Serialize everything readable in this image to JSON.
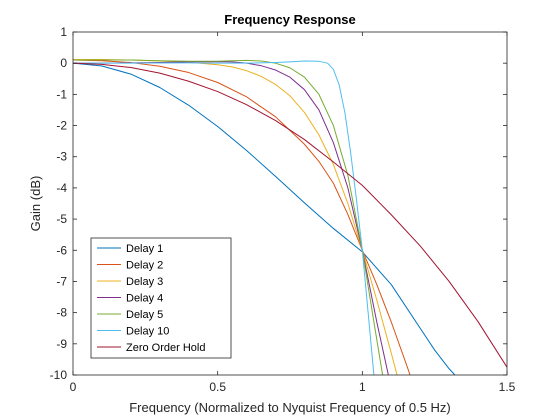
{
  "chart_data": {
    "type": "line",
    "title": "Frequency Response",
    "xlabel": "Frequency (Normalized to Nyquist Frequency of 0.5 Hz)",
    "ylabel": "Gain (dB)",
    "xlim": [
      0,
      1.5
    ],
    "ylim": [
      -10,
      1
    ],
    "xticks": [
      0,
      0.5,
      1,
      1.5
    ],
    "xtick_labels": [
      "0",
      "0.5",
      "1",
      "1.5"
    ],
    "yticks": [
      1,
      0,
      -1,
      -2,
      -3,
      -4,
      -5,
      -6,
      -7,
      -8,
      -9,
      -10
    ],
    "ytick_labels": [
      "1",
      "0",
      "-1",
      "-2",
      "-3",
      "-4",
      "-5",
      "-6",
      "-7",
      "-8",
      "-9",
      "-10"
    ],
    "grid": false,
    "legend_position": "bottom-left",
    "series": [
      {
        "name": "Delay 1",
        "color": "#0072BD",
        "x": [
          0,
          0.1,
          0.2,
          0.3,
          0.4,
          0.5,
          0.6,
          0.7,
          0.8,
          0.9,
          1.0,
          1.1,
          1.2,
          1.25,
          1.3,
          1.32
        ],
        "y": [
          0,
          -0.09,
          -0.35,
          -0.78,
          -1.35,
          -2.03,
          -2.8,
          -3.63,
          -4.48,
          -5.3,
          -6.05,
          -7.1,
          -8.5,
          -9.2,
          -9.8,
          -10
        ]
      },
      {
        "name": "Delay 2",
        "color": "#D95319",
        "x": [
          0,
          0.1,
          0.2,
          0.3,
          0.4,
          0.5,
          0.6,
          0.7,
          0.8,
          0.85,
          0.9,
          0.95,
          1.0,
          1.05,
          1.1,
          1.15,
          1.165
        ],
        "y": [
          0.1,
          0.08,
          0.02,
          -0.1,
          -0.3,
          -0.62,
          -1.08,
          -1.72,
          -2.6,
          -3.15,
          -3.85,
          -4.85,
          -6.0,
          -7.1,
          -8.3,
          -9.6,
          -10
        ]
      },
      {
        "name": "Delay 3",
        "color": "#EDB120",
        "x": [
          0,
          0.1,
          0.2,
          0.3,
          0.4,
          0.5,
          0.55,
          0.6,
          0.65,
          0.7,
          0.75,
          0.8,
          0.85,
          0.9,
          0.95,
          1.0,
          1.05,
          1.1,
          1.12
        ],
        "y": [
          0.12,
          0.12,
          0.1,
          0.07,
          0.03,
          -0.05,
          -0.12,
          -0.24,
          -0.42,
          -0.68,
          -1.05,
          -1.58,
          -2.3,
          -3.25,
          -4.5,
          -6.0,
          -7.6,
          -9.3,
          -10
        ]
      },
      {
        "name": "Delay 4",
        "color": "#7E2F8E",
        "x": [
          0,
          0.1,
          0.2,
          0.3,
          0.4,
          0.5,
          0.55,
          0.6,
          0.65,
          0.7,
          0.75,
          0.8,
          0.85,
          0.9,
          0.95,
          1.0,
          1.05,
          1.09
        ],
        "y": [
          0,
          0,
          0.01,
          0.02,
          0.04,
          0.05,
          0.04,
          0.0,
          -0.08,
          -0.22,
          -0.45,
          -0.85,
          -1.5,
          -2.55,
          -4.0,
          -6.0,
          -8.3,
          -10
        ]
      },
      {
        "name": "Delay 5",
        "color": "#77AC30",
        "x": [
          0,
          0.1,
          0.2,
          0.3,
          0.4,
          0.5,
          0.55,
          0.6,
          0.65,
          0.7,
          0.75,
          0.8,
          0.85,
          0.9,
          0.95,
          1.0,
          1.04,
          1.07
        ],
        "y": [
          0.1,
          0.1,
          0.1,
          0.08,
          0.06,
          0.06,
          0.08,
          0.09,
          0.07,
          0.0,
          -0.15,
          -0.45,
          -1.0,
          -2.0,
          -3.6,
          -6.0,
          -8.3,
          -10
        ]
      },
      {
        "name": "Delay 10",
        "color": "#4DBEEE",
        "x": [
          0,
          0.2,
          0.4,
          0.5,
          0.6,
          0.7,
          0.75,
          0.8,
          0.85,
          0.88,
          0.9,
          0.92,
          0.94,
          0.96,
          0.98,
          1.0,
          1.02,
          1.04
        ],
        "y": [
          0,
          0,
          0.01,
          0.0,
          0.0,
          0.02,
          0.04,
          0.07,
          0.06,
          0.0,
          -0.2,
          -0.7,
          -1.6,
          -2.9,
          -4.4,
          -6.0,
          -8.0,
          -10
        ]
      },
      {
        "name": "Zero Order Hold",
        "color": "#A2142F",
        "x": [
          0,
          0.1,
          0.2,
          0.3,
          0.4,
          0.5,
          0.6,
          0.7,
          0.8,
          0.9,
          1.0,
          1.1,
          1.2,
          1.3,
          1.4,
          1.5
        ],
        "y": [
          0,
          -0.04,
          -0.14,
          -0.32,
          -0.58,
          -0.91,
          -1.33,
          -1.84,
          -2.45,
          -3.17,
          -3.92,
          -4.86,
          -5.86,
          -7.0,
          -8.29,
          -9.75
        ]
      }
    ]
  }
}
